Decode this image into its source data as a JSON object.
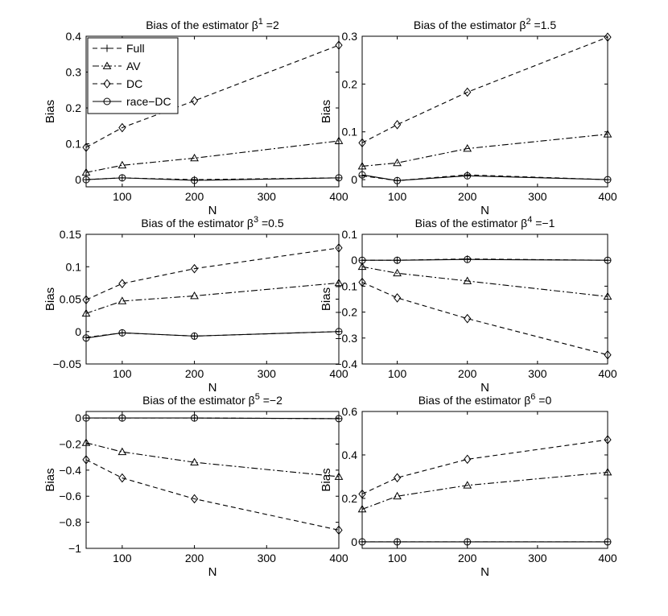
{
  "legend": {
    "placement": "top-left of first panel",
    "entries": [
      {
        "key": "full",
        "label": "Full",
        "marker": "plus",
        "dash": "6,4"
      },
      {
        "key": "av",
        "label": "AV",
        "marker": "triangle",
        "dash": "8,3,2,3"
      },
      {
        "key": "dc",
        "label": "DC",
        "marker": "diamond",
        "dash": "6,4"
      },
      {
        "key": "race",
        "label": "race−DC",
        "marker": "circle",
        "dash": ""
      }
    ]
  },
  "chart_data": [
    {
      "type": "line",
      "title": "Bias of the estimator β",
      "title_superscript": "1",
      "title_suffix": " =2",
      "xlabel": "N",
      "ylabel": "Bias",
      "x": [
        50,
        100,
        200,
        400
      ],
      "xlim": [
        50,
        400
      ],
      "ylim": [
        -0.02,
        0.4
      ],
      "xticks": [
        100,
        200,
        300,
        400
      ],
      "xtick_labels": [
        "100",
        "200",
        "300",
        "400"
      ],
      "yticks": [
        0,
        0.1,
        0.2,
        0.3,
        0.4
      ],
      "ytick_labels": [
        "0",
        "0.1",
        "0.2",
        "0.3",
        "0.4"
      ],
      "series": [
        {
          "name": "Full",
          "values": [
            0.0,
            0.005,
            0.0,
            0.005
          ]
        },
        {
          "name": "AV",
          "values": [
            0.02,
            0.04,
            0.06,
            0.108
          ]
        },
        {
          "name": "DC",
          "values": [
            0.09,
            0.145,
            0.22,
            0.375
          ]
        },
        {
          "name": "race−DC",
          "values": [
            0.0,
            0.005,
            -0.002,
            0.005
          ]
        }
      ]
    },
    {
      "type": "line",
      "title": "Bias of the estimator β",
      "title_superscript": "2",
      "title_suffix": " =1.5",
      "xlabel": "N",
      "ylabel": "Bias",
      "x": [
        50,
        100,
        200,
        400
      ],
      "xlim": [
        50,
        400
      ],
      "ylim": [
        -0.015,
        0.3
      ],
      "xticks": [
        100,
        200,
        300,
        400
      ],
      "xtick_labels": [
        "100",
        "200",
        "300",
        "400"
      ],
      "yticks": [
        0,
        0.1,
        0.2,
        0.3
      ],
      "ytick_labels": [
        "0",
        "0.1",
        "0.2",
        "0.3"
      ],
      "series": [
        {
          "name": "Full",
          "values": [
            0.008,
            -0.002,
            0.01,
            0.0
          ]
        },
        {
          "name": "AV",
          "values": [
            0.028,
            0.035,
            0.065,
            0.095
          ]
        },
        {
          "name": "DC",
          "values": [
            0.077,
            0.115,
            0.183,
            0.298
          ]
        },
        {
          "name": "race−DC",
          "values": [
            0.01,
            -0.002,
            0.008,
            0.0
          ]
        }
      ]
    },
    {
      "type": "line",
      "title": "Bias of the estimator β",
      "title_superscript": "3",
      "title_suffix": " =0.5",
      "xlabel": "N",
      "ylabel": "Bias",
      "x": [
        50,
        100,
        200,
        400
      ],
      "xlim": [
        50,
        400
      ],
      "ylim": [
        -0.05,
        0.15
      ],
      "xticks": [
        100,
        200,
        300,
        400
      ],
      "xtick_labels": [
        "100",
        "200",
        "300",
        "400"
      ],
      "yticks": [
        -0.05,
        0,
        0.05,
        0.1,
        0.15
      ],
      "ytick_labels": [
        "−0.05",
        "0",
        "0.05",
        "0.1",
        "0.15"
      ],
      "series": [
        {
          "name": "Full",
          "values": [
            -0.009,
            -0.002,
            -0.007,
            0.0
          ]
        },
        {
          "name": "AV",
          "values": [
            0.028,
            0.047,
            0.055,
            0.075
          ]
        },
        {
          "name": "DC",
          "values": [
            0.049,
            0.074,
            0.097,
            0.129
          ]
        },
        {
          "name": "race−DC",
          "values": [
            -0.01,
            -0.002,
            -0.007,
            0.0
          ]
        }
      ]
    },
    {
      "type": "line",
      "title": "Bias of the estimator β",
      "title_superscript": "4",
      "title_suffix": " =−1",
      "xlabel": "N",
      "ylabel": "Bias",
      "x": [
        50,
        100,
        200,
        400
      ],
      "xlim": [
        50,
        400
      ],
      "ylim": [
        -0.4,
        0.1
      ],
      "xticks": [
        100,
        200,
        300,
        400
      ],
      "xtick_labels": [
        "100",
        "200",
        "300",
        "400"
      ],
      "yticks": [
        -0.4,
        -0.3,
        -0.2,
        -0.1,
        0,
        0.1
      ],
      "ytick_labels": [
        "−0.4",
        "−0.3",
        "−0.2",
        "−0.1",
        "0",
        "0.1"
      ],
      "series": [
        {
          "name": "Full",
          "values": [
            0.0,
            0.0,
            0.005,
            0.0
          ]
        },
        {
          "name": "AV",
          "values": [
            -0.025,
            -0.05,
            -0.08,
            -0.14
          ]
        },
        {
          "name": "DC",
          "values": [
            -0.085,
            -0.145,
            -0.225,
            -0.365
          ]
        },
        {
          "name": "race−DC",
          "values": [
            0.0,
            0.0,
            0.003,
            0.0
          ]
        }
      ]
    },
    {
      "type": "line",
      "title": "Bias of the estimator β",
      "title_superscript": "5",
      "title_suffix": " =−2",
      "xlabel": "N",
      "ylabel": "Bias",
      "x": [
        50,
        100,
        200,
        400
      ],
      "xlim": [
        50,
        400
      ],
      "ylim": [
        -1.0,
        0.05
      ],
      "xticks": [
        100,
        200,
        300,
        400
      ],
      "xtick_labels": [
        "100",
        "200",
        "300",
        "400"
      ],
      "yticks": [
        -1.0,
        -0.8,
        -0.6,
        -0.4,
        -0.2,
        0
      ],
      "ytick_labels": [
        "−1",
        "−0.8",
        "−0.6",
        "−0.4",
        "−0.2",
        "0"
      ],
      "series": [
        {
          "name": "Full",
          "values": [
            0.0,
            0.0,
            0.0,
            -0.005
          ]
        },
        {
          "name": "AV",
          "values": [
            -0.19,
            -0.26,
            -0.34,
            -0.45
          ]
        },
        {
          "name": "DC",
          "values": [
            -0.32,
            -0.46,
            -0.62,
            -0.86
          ]
        },
        {
          "name": "race−DC",
          "values": [
            0.0,
            0.0,
            0.0,
            -0.005
          ]
        }
      ]
    },
    {
      "type": "line",
      "title": "Bias of the estimator β",
      "title_superscript": "6",
      "title_suffix": " =0",
      "xlabel": "N",
      "ylabel": "Bias",
      "x": [
        50,
        100,
        200,
        400
      ],
      "xlim": [
        50,
        400
      ],
      "ylim": [
        -0.03,
        0.6
      ],
      "xticks": [
        100,
        200,
        300,
        400
      ],
      "xtick_labels": [
        "100",
        "200",
        "300",
        "400"
      ],
      "yticks": [
        0,
        0.2,
        0.4,
        0.6
      ],
      "ytick_labels": [
        "0",
        "0.2",
        "0.4",
        "0.6"
      ],
      "series": [
        {
          "name": "Full",
          "values": [
            0.0,
            0.0,
            0.0,
            0.0
          ]
        },
        {
          "name": "AV",
          "values": [
            0.15,
            0.21,
            0.26,
            0.32
          ]
        },
        {
          "name": "DC",
          "values": [
            0.22,
            0.295,
            0.38,
            0.47
          ]
        },
        {
          "name": "race−DC",
          "values": [
            0.0,
            0.0,
            0.0,
            0.0
          ]
        }
      ]
    }
  ]
}
